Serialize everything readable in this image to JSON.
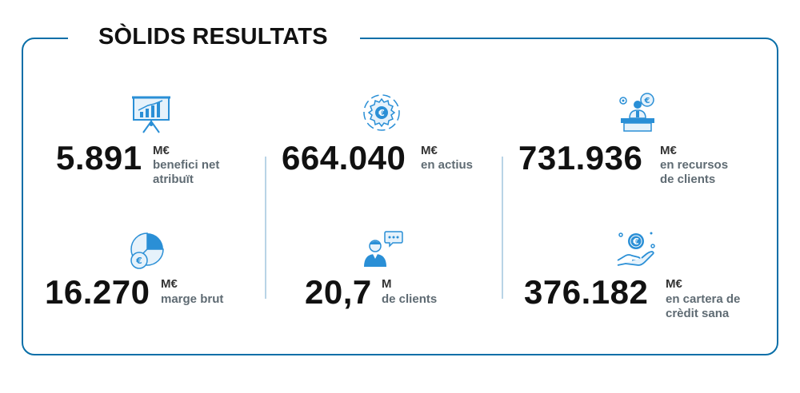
{
  "title": "SÒLIDS RESULTATS",
  "colors": {
    "accent": "#0a6fa8",
    "icon": "#2a8fd6",
    "divider": "#b9d4e6"
  },
  "stats": [
    {
      "icon": "presentation-chart-icon",
      "value": "5.891",
      "unit": "M€",
      "desc1": "benefici net",
      "desc2": "atribuït"
    },
    {
      "icon": "gear-euro-icon",
      "value": "664.040",
      "unit": "M€",
      "desc1": "en actius",
      "desc2": ""
    },
    {
      "icon": "advisor-desk-icon",
      "value": "731.936",
      "unit": "M€",
      "desc1": "en recursos",
      "desc2": "de clients"
    },
    {
      "icon": "pie-chart-euro-icon",
      "value": "16.270",
      "unit": "M€",
      "desc1": "marge brut",
      "desc2": ""
    },
    {
      "icon": "client-chat-icon",
      "value": "20,7",
      "unit": "M",
      "desc1": "de clients",
      "desc2": ""
    },
    {
      "icon": "hand-coin-icon",
      "value": "376.182",
      "unit": "M€",
      "desc1": "en cartera de",
      "desc2": "crèdit sana"
    }
  ]
}
